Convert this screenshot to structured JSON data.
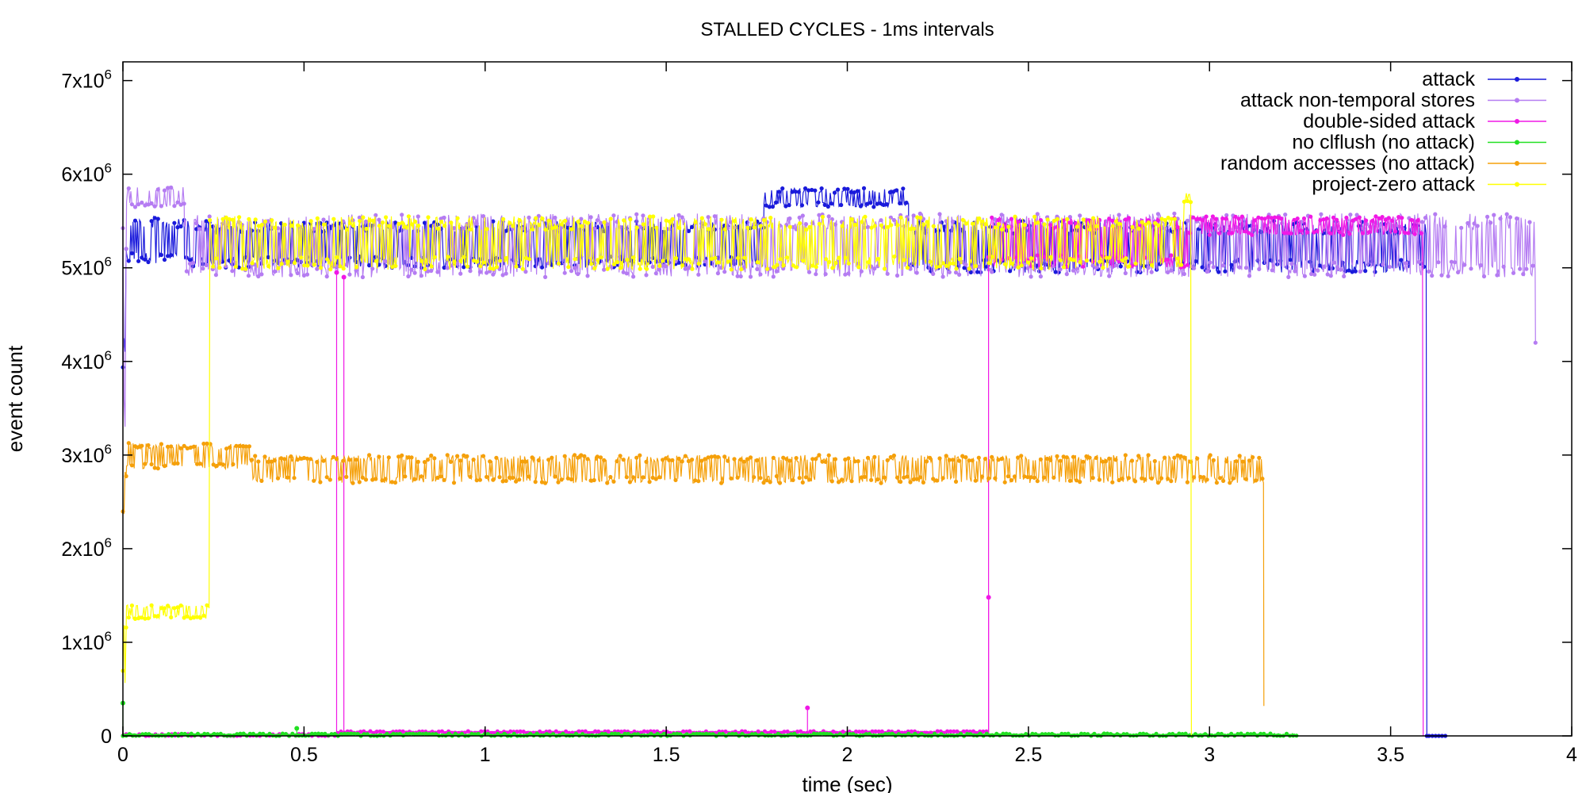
{
  "chart_data": {
    "type": "line",
    "title": "STALLED CYCLES - 1ms intervals",
    "xlabel": "time (sec)",
    "ylabel": "event count",
    "xlim": [
      0,
      4
    ],
    "ylim": [
      0,
      7200000
    ],
    "grid": false,
    "legend_position": "top-right",
    "x_ticks": [
      {
        "value": 0,
        "label": "0"
      },
      {
        "value": 0.5,
        "label": "0.5"
      },
      {
        "value": 1,
        "label": "1"
      },
      {
        "value": 1.5,
        "label": "1.5"
      },
      {
        "value": 2,
        "label": "2"
      },
      {
        "value": 2.5,
        "label": "2.5"
      },
      {
        "value": 3,
        "label": "3"
      },
      {
        "value": 3.5,
        "label": "3.5"
      },
      {
        "value": 4,
        "label": "4"
      }
    ],
    "y_ticks": [
      {
        "value": 0,
        "base": "0",
        "exp": ""
      },
      {
        "value": 1000000,
        "base": "1x10",
        "exp": "6"
      },
      {
        "value": 2000000,
        "base": "2x10",
        "exp": "6"
      },
      {
        "value": 3000000,
        "base": "3x10",
        "exp": "6"
      },
      {
        "value": 4000000,
        "base": "4x10",
        "exp": "6"
      },
      {
        "value": 5000000,
        "base": "5x10",
        "exp": "6"
      },
      {
        "value": 6000000,
        "base": "6x10",
        "exp": "6"
      },
      {
        "value": 7000000,
        "base": "7x10",
        "exp": "6"
      }
    ],
    "series": [
      {
        "name": "attack",
        "color": "#1a1adb",
        "segments": [
          {
            "x0": 0.0,
            "x1": 0.01,
            "lo": 3800000,
            "hi": 5600000
          },
          {
            "x0": 0.01,
            "x1": 0.17,
            "lo": 5050000,
            "hi": 5550000
          },
          {
            "x0": 0.17,
            "x1": 1.77,
            "lo": 5000000,
            "hi": 5500000
          },
          {
            "x0": 1.77,
            "x1": 2.17,
            "lo": 5650000,
            "hi": 5850000
          },
          {
            "x0": 2.17,
            "x1": 3.6,
            "lo": 4950000,
            "hi": 5500000
          }
        ],
        "drop": {
          "x": 3.6,
          "to": 0
        },
        "tail": {
          "x0": 3.6,
          "x1": 3.66,
          "value": 0
        }
      },
      {
        "name": "attack non-temporal stores",
        "color": "#b57cf2",
        "segments": [
          {
            "x0": 0.0,
            "x1": 0.01,
            "lo": 3100000,
            "hi": 5500000
          },
          {
            "x0": 0.01,
            "x1": 0.17,
            "lo": 5650000,
            "hi": 5870000
          },
          {
            "x0": 0.17,
            "x1": 3.9,
            "lo": 4900000,
            "hi": 5580000
          }
        ],
        "drop": {
          "x": 3.9,
          "to": 4200000
        }
      },
      {
        "name": "double-sided attack",
        "color": "#f018e6",
        "segments": [
          {
            "x0": 0.0,
            "x1": 0.59,
            "lo": 0,
            "hi": 20000
          },
          {
            "x0": 0.59,
            "x1": 2.39,
            "lo": 30000,
            "hi": 50000
          },
          {
            "x0": 2.39,
            "x1": 2.94,
            "lo": 5000000,
            "hi": 5550000
          },
          {
            "x0": 2.94,
            "x1": 3.59,
            "lo": 5350000,
            "hi": 5550000
          }
        ],
        "spikes": [
          {
            "x": 0.59,
            "value": 4950000
          },
          {
            "x": 0.61,
            "value": 4900000
          },
          {
            "x": 1.89,
            "value": 300000
          },
          {
            "x": 2.39,
            "value": 1480000
          }
        ],
        "drop": {
          "x": 3.59,
          "to": 0
        }
      },
      {
        "name": "no clflush (no attack)",
        "color": "#22e022",
        "segments": [
          {
            "x0": 0.0,
            "x1": 3.24,
            "lo": 0,
            "hi": 25000
          }
        ],
        "spikes": [
          {
            "x": 0.0,
            "value": 350000
          },
          {
            "x": 0.48,
            "value": 80000
          }
        ]
      },
      {
        "name": "random accesses (no attack)",
        "color": "#f5a00a",
        "segments": [
          {
            "x0": 0.0,
            "x1": 0.01,
            "lo": 400000,
            "hi": 2950000
          },
          {
            "x0": 0.01,
            "x1": 0.35,
            "lo": 2850000,
            "hi": 3130000
          },
          {
            "x0": 0.35,
            "x1": 3.15,
            "lo": 2700000,
            "hi": 3000000
          }
        ],
        "drop": {
          "x": 3.15,
          "to": 320000
        }
      },
      {
        "name": "project-zero attack",
        "color": "#ffff00",
        "segments": [
          {
            "x0": 0.0,
            "x1": 0.01,
            "lo": 560000,
            "hi": 1300000
          },
          {
            "x0": 0.01,
            "x1": 0.24,
            "lo": 1250000,
            "hi": 1400000
          },
          {
            "x0": 0.24,
            "x1": 2.93,
            "lo": 4980000,
            "hi": 5550000
          },
          {
            "x0": 2.93,
            "x1": 2.95,
            "lo": 5700000,
            "hi": 5800000
          }
        ],
        "drop": {
          "x": 2.95,
          "to": 0
        }
      }
    ]
  }
}
